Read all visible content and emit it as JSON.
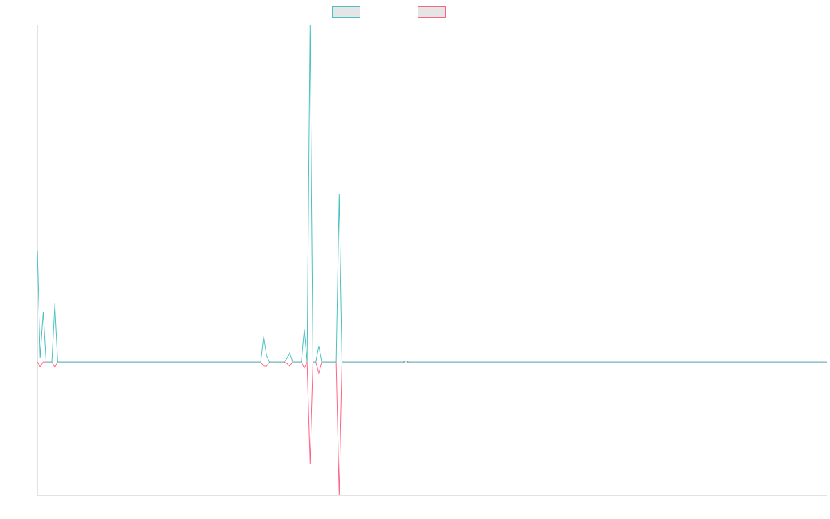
{
  "chart_data": {
    "type": "line",
    "title": "",
    "xlabel": "",
    "ylabel": "",
    "ylim": [
      -39.6,
      100
    ],
    "grid": false,
    "legend": "top-center",
    "series": [
      {
        "color": "#4bc0c0",
        "legend_fill": "#e5e5e5",
        "values": [
          32.9,
          1.2,
          14.8,
          0,
          0,
          0,
          17.5,
          0,
          0,
          0,
          0,
          0,
          0,
          0,
          0,
          0,
          0,
          0,
          0,
          0,
          0,
          0,
          0,
          0,
          0,
          0,
          0,
          0,
          0,
          0,
          0,
          0,
          0,
          0,
          0,
          0,
          0,
          0,
          0,
          0,
          0,
          0,
          0,
          0,
          0,
          0,
          0,
          0,
          0,
          0,
          0,
          0,
          0,
          0,
          0,
          0,
          0,
          0,
          0,
          0,
          0,
          0,
          0,
          0,
          0,
          0,
          0,
          0,
          0,
          0,
          0,
          0,
          0,
          0,
          0,
          0,
          0,
          0,
          7.6,
          1.8,
          0,
          0,
          0,
          0,
          0,
          0,
          1.0,
          2.7,
          0,
          0,
          0,
          0,
          9.7,
          0,
          100,
          0,
          0,
          4.7,
          0,
          0,
          0,
          0,
          0,
          0,
          49.9,
          0,
          0,
          0,
          0,
          0,
          0,
          0,
          0,
          0,
          0,
          0,
          0,
          0,
          0,
          0,
          0,
          0,
          0,
          0,
          0,
          0,
          0,
          0.3,
          0,
          0,
          0,
          0,
          0,
          0,
          0,
          0,
          0,
          0,
          0,
          0,
          0,
          0,
          0,
          0,
          0,
          0,
          0,
          0,
          0,
          0,
          0,
          0,
          0,
          0,
          0,
          0,
          0,
          0,
          0,
          0,
          0,
          0,
          0,
          0,
          0,
          0,
          0,
          0,
          0,
          0,
          0,
          0,
          0,
          0,
          0,
          0,
          0,
          0,
          0,
          0,
          0,
          0,
          0,
          0,
          0,
          0,
          0,
          0,
          0,
          0,
          0,
          0,
          0,
          0,
          0,
          0,
          0,
          0,
          0,
          0,
          0,
          0,
          0,
          0,
          0,
          0,
          0,
          0,
          0,
          0,
          0,
          0,
          0,
          0,
          0,
          0,
          0,
          0,
          0,
          0,
          0,
          0,
          0,
          0,
          0,
          0,
          0,
          0,
          0,
          0,
          0,
          0,
          0,
          0,
          0,
          0,
          0,
          0,
          0,
          0,
          0,
          0,
          0,
          0,
          0,
          0,
          0,
          0,
          0,
          0,
          0,
          0,
          0,
          0,
          0,
          0,
          0,
          0,
          0,
          0,
          0,
          0,
          0,
          0,
          0,
          0,
          0,
          0,
          0,
          0,
          0,
          0,
          0
        ]
      },
      {
        "color": "#ff6384",
        "legend_fill": "#e5e5e5",
        "values": [
          0,
          -1.4,
          0,
          0,
          0,
          0,
          -1.6,
          0,
          0,
          0,
          0,
          0,
          0,
          0,
          0,
          0,
          0,
          0,
          0,
          0,
          0,
          0,
          0,
          0,
          0,
          0,
          0,
          0,
          0,
          0,
          0,
          0,
          0,
          0,
          0,
          0,
          0,
          0,
          0,
          0,
          0,
          0,
          0,
          0,
          0,
          0,
          0,
          0,
          0,
          0,
          0,
          0,
          0,
          0,
          0,
          0,
          0,
          0,
          0,
          0,
          0,
          0,
          0,
          0,
          0,
          0,
          0,
          0,
          0,
          0,
          0,
          0,
          0,
          0,
          0,
          0,
          0,
          0,
          -1.2,
          -1.2,
          0,
          0,
          0,
          0,
          0,
          0,
          -0.4,
          -1.2,
          0,
          0,
          0,
          0,
          -1.8,
          0,
          -30.2,
          0,
          0,
          -3.3,
          0,
          0,
          0,
          0,
          0,
          0,
          -39.6,
          0,
          0,
          0,
          0,
          0,
          0,
          0,
          0,
          0,
          0,
          0,
          0,
          0,
          0,
          0,
          0,
          0,
          0,
          0,
          0,
          0,
          0,
          -0.3,
          0,
          0,
          0,
          0,
          0,
          0,
          0,
          0,
          0,
          0,
          0,
          0,
          0,
          0,
          0,
          0,
          0,
          0,
          0,
          0,
          0,
          0,
          0,
          0,
          0,
          0,
          0,
          0,
          0,
          0,
          0,
          0,
          0,
          0,
          0,
          0,
          0,
          0,
          0,
          0,
          0,
          0,
          0,
          0,
          0,
          0,
          0,
          0,
          0,
          0,
          0,
          0,
          0,
          0,
          0,
          0,
          0,
          0,
          0,
          0,
          0,
          0,
          0,
          0,
          0,
          0,
          0,
          0,
          0,
          0,
          0,
          0,
          0,
          0,
          0,
          0,
          0,
          0,
          0,
          0,
          0,
          0,
          0,
          0,
          0,
          0,
          0,
          0,
          0,
          0,
          0,
          0,
          0,
          0,
          0,
          0,
          0,
          0,
          0,
          0,
          0,
          0,
          0,
          0,
          0,
          0,
          0,
          0,
          0,
          0,
          0,
          0,
          0,
          0,
          0,
          0,
          0,
          0,
          0,
          0,
          0,
          0,
          0,
          0,
          0,
          0,
          0,
          0,
          0,
          0,
          0,
          0,
          0,
          0,
          0,
          0,
          0,
          0,
          0,
          0,
          0,
          0,
          0,
          0,
          0
        ]
      }
    ]
  }
}
